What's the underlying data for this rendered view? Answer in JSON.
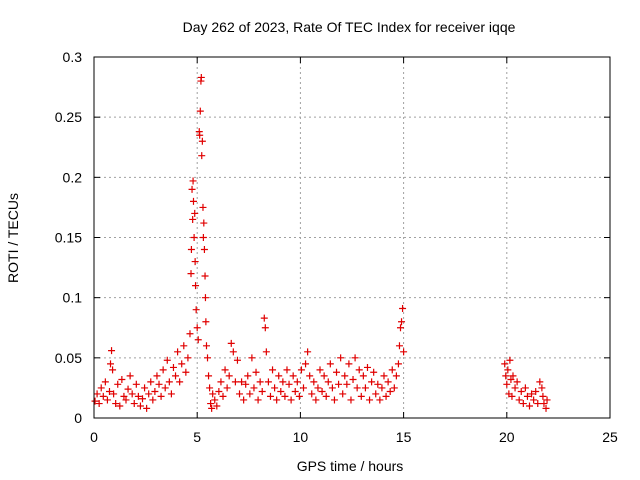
{
  "chart_data": {
    "type": "scatter",
    "title": "Day 262 of 2023, Rate Of TEC Index for receiver iqqe",
    "xlabel": "GPS time / hours",
    "ylabel": "ROTI / TECUs",
    "xlim": [
      0,
      25
    ],
    "ylim": [
      0,
      0.3
    ],
    "xticks": [
      0,
      5,
      10,
      15,
      20,
      25
    ],
    "xtick_labels": [
      "0",
      "5",
      "10",
      "15",
      "20",
      "25"
    ],
    "yticks": [
      0,
      0.05,
      0.1,
      0.15,
      0.2,
      0.25,
      0.3
    ],
    "ytick_labels": [
      "0",
      "0.05",
      "0.1",
      "0.15",
      "0.2",
      "0.25",
      "0.3"
    ],
    "grid": true,
    "marker": "+",
    "color": "#e00000",
    "series": [
      {
        "name": "ROTI",
        "points": [
          [
            0.05,
            0.014
          ],
          [
            0.15,
            0.02
          ],
          [
            0.25,
            0.012
          ],
          [
            0.35,
            0.025
          ],
          [
            0.45,
            0.018
          ],
          [
            0.55,
            0.03
          ],
          [
            0.65,
            0.015
          ],
          [
            0.75,
            0.022
          ],
          [
            0.8,
            0.045
          ],
          [
            0.85,
            0.056
          ],
          [
            0.9,
            0.04
          ],
          [
            0.95,
            0.02
          ],
          [
            1.05,
            0.012
          ],
          [
            1.15,
            0.028
          ],
          [
            1.25,
            0.01
          ],
          [
            1.35,
            0.032
          ],
          [
            1.45,
            0.018
          ],
          [
            1.55,
            0.015
          ],
          [
            1.65,
            0.024
          ],
          [
            1.75,
            0.035
          ],
          [
            1.85,
            0.02
          ],
          [
            1.95,
            0.012
          ],
          [
            2.05,
            0.028
          ],
          [
            2.15,
            0.018
          ],
          [
            2.25,
            0.01
          ],
          [
            2.35,
            0.016
          ],
          [
            2.45,
            0.025
          ],
          [
            2.55,
            0.008
          ],
          [
            2.65,
            0.02
          ],
          [
            2.75,
            0.03
          ],
          [
            2.85,
            0.015
          ],
          [
            2.95,
            0.022
          ],
          [
            3.05,
            0.035
          ],
          [
            3.15,
            0.028
          ],
          [
            3.25,
            0.018
          ],
          [
            3.35,
            0.04
          ],
          [
            3.45,
            0.025
          ],
          [
            3.55,
            0.048
          ],
          [
            3.65,
            0.03
          ],
          [
            3.75,
            0.02
          ],
          [
            3.85,
            0.042
          ],
          [
            3.95,
            0.035
          ],
          [
            4.05,
            0.055
          ],
          [
            4.15,
            0.03
          ],
          [
            4.25,
            0.045
          ],
          [
            4.35,
            0.06
          ],
          [
            4.45,
            0.038
          ],
          [
            4.55,
            0.05
          ],
          [
            4.65,
            0.07
          ],
          [
            4.7,
            0.12
          ],
          [
            4.72,
            0.14
          ],
          [
            4.75,
            0.19
          ],
          [
            4.78,
            0.165
          ],
          [
            4.8,
            0.197
          ],
          [
            4.82,
            0.18
          ],
          [
            4.85,
            0.15
          ],
          [
            4.88,
            0.17
          ],
          [
            4.9,
            0.13
          ],
          [
            4.92,
            0.11
          ],
          [
            4.95,
            0.09
          ],
          [
            5.0,
            0.075
          ],
          [
            5.05,
            0.065
          ],
          [
            5.1,
            0.238
          ],
          [
            5.12,
            0.235
          ],
          [
            5.15,
            0.255
          ],
          [
            5.18,
            0.28
          ],
          [
            5.2,
            0.283
          ],
          [
            5.22,
            0.218
          ],
          [
            5.25,
            0.23
          ],
          [
            5.28,
            0.175
          ],
          [
            5.3,
            0.15
          ],
          [
            5.32,
            0.162
          ],
          [
            5.35,
            0.14
          ],
          [
            5.38,
            0.118
          ],
          [
            5.4,
            0.1
          ],
          [
            5.42,
            0.08
          ],
          [
            5.45,
            0.06
          ],
          [
            5.5,
            0.05
          ],
          [
            5.55,
            0.035
          ],
          [
            5.6,
            0.025
          ],
          [
            5.65,
            0.012
          ],
          [
            5.7,
            0.008
          ],
          [
            5.75,
            0.02
          ],
          [
            5.85,
            0.015
          ],
          [
            5.95,
            0.01
          ],
          [
            6.05,
            0.022
          ],
          [
            6.15,
            0.03
          ],
          [
            6.25,
            0.018
          ],
          [
            6.35,
            0.04
          ],
          [
            6.45,
            0.025
          ],
          [
            6.55,
            0.035
          ],
          [
            6.65,
            0.062
          ],
          [
            6.75,
            0.055
          ],
          [
            6.85,
            0.03
          ],
          [
            6.95,
            0.048
          ],
          [
            7.05,
            0.02
          ],
          [
            7.15,
            0.03
          ],
          [
            7.25,
            0.015
          ],
          [
            7.35,
            0.028
          ],
          [
            7.45,
            0.035
          ],
          [
            7.55,
            0.02
          ],
          [
            7.65,
            0.05
          ],
          [
            7.75,
            0.025
          ],
          [
            7.85,
            0.038
          ],
          [
            7.95,
            0.015
          ],
          [
            8.05,
            0.03
          ],
          [
            8.15,
            0.022
          ],
          [
            8.25,
            0.083
          ],
          [
            8.3,
            0.075
          ],
          [
            8.35,
            0.055
          ],
          [
            8.45,
            0.03
          ],
          [
            8.55,
            0.018
          ],
          [
            8.65,
            0.04
          ],
          [
            8.75,
            0.025
          ],
          [
            8.85,
            0.015
          ],
          [
            8.95,
            0.035
          ],
          [
            9.05,
            0.022
          ],
          [
            9.15,
            0.03
          ],
          [
            9.25,
            0.018
          ],
          [
            9.35,
            0.04
          ],
          [
            9.45,
            0.028
          ],
          [
            9.55,
            0.015
          ],
          [
            9.65,
            0.035
          ],
          [
            9.75,
            0.022
          ],
          [
            9.85,
            0.03
          ],
          [
            9.95,
            0.018
          ],
          [
            10.05,
            0.04
          ],
          [
            10.15,
            0.025
          ],
          [
            10.25,
            0.045
          ],
          [
            10.35,
            0.055
          ],
          [
            10.45,
            0.035
          ],
          [
            10.55,
            0.02
          ],
          [
            10.65,
            0.03
          ],
          [
            10.75,
            0.015
          ],
          [
            10.85,
            0.025
          ],
          [
            10.95,
            0.04
          ],
          [
            11.05,
            0.022
          ],
          [
            11.15,
            0.035
          ],
          [
            11.25,
            0.018
          ],
          [
            11.35,
            0.03
          ],
          [
            11.45,
            0.045
          ],
          [
            11.55,
            0.025
          ],
          [
            11.65,
            0.015
          ],
          [
            11.75,
            0.038
          ],
          [
            11.85,
            0.028
          ],
          [
            11.95,
            0.05
          ],
          [
            12.05,
            0.02
          ],
          [
            12.15,
            0.035
          ],
          [
            12.25,
            0.028
          ],
          [
            12.35,
            0.045
          ],
          [
            12.45,
            0.015
          ],
          [
            12.55,
            0.032
          ],
          [
            12.65,
            0.05
          ],
          [
            12.75,
            0.025
          ],
          [
            12.85,
            0.04
          ],
          [
            12.95,
            0.018
          ],
          [
            13.05,
            0.035
          ],
          [
            13.15,
            0.025
          ],
          [
            13.25,
            0.042
          ],
          [
            13.35,
            0.015
          ],
          [
            13.45,
            0.03
          ],
          [
            13.55,
            0.038
          ],
          [
            13.65,
            0.02
          ],
          [
            13.75,
            0.028
          ],
          [
            13.85,
            0.015
          ],
          [
            13.95,
            0.025
          ],
          [
            14.05,
            0.035
          ],
          [
            14.15,
            0.018
          ],
          [
            14.25,
            0.03
          ],
          [
            14.35,
            0.022
          ],
          [
            14.45,
            0.04
          ],
          [
            14.55,
            0.025
          ],
          [
            14.65,
            0.035
          ],
          [
            14.75,
            0.045
          ],
          [
            14.8,
            0.06
          ],
          [
            14.85,
            0.075
          ],
          [
            14.9,
            0.08
          ],
          [
            14.95,
            0.091
          ],
          [
            15.0,
            0.055
          ],
          [
            19.9,
            0.045
          ],
          [
            19.95,
            0.035
          ],
          [
            20.0,
            0.028
          ],
          [
            20.05,
            0.04
          ],
          [
            20.1,
            0.02
          ],
          [
            20.15,
            0.048
          ],
          [
            20.2,
            0.032
          ],
          [
            20.25,
            0.018
          ],
          [
            20.3,
            0.035
          ],
          [
            20.4,
            0.025
          ],
          [
            20.5,
            0.03
          ],
          [
            20.6,
            0.015
          ],
          [
            20.7,
            0.022
          ],
          [
            20.8,
            0.012
          ],
          [
            20.9,
            0.025
          ],
          [
            21.0,
            0.018
          ],
          [
            21.1,
            0.01
          ],
          [
            21.2,
            0.02
          ],
          [
            21.3,
            0.015
          ],
          [
            21.4,
            0.022
          ],
          [
            21.5,
            0.012
          ],
          [
            21.6,
            0.03
          ],
          [
            21.7,
            0.025
          ],
          [
            21.75,
            0.018
          ],
          [
            21.8,
            0.012
          ],
          [
            21.9,
            0.008
          ],
          [
            21.95,
            0.015
          ]
        ]
      }
    ]
  }
}
